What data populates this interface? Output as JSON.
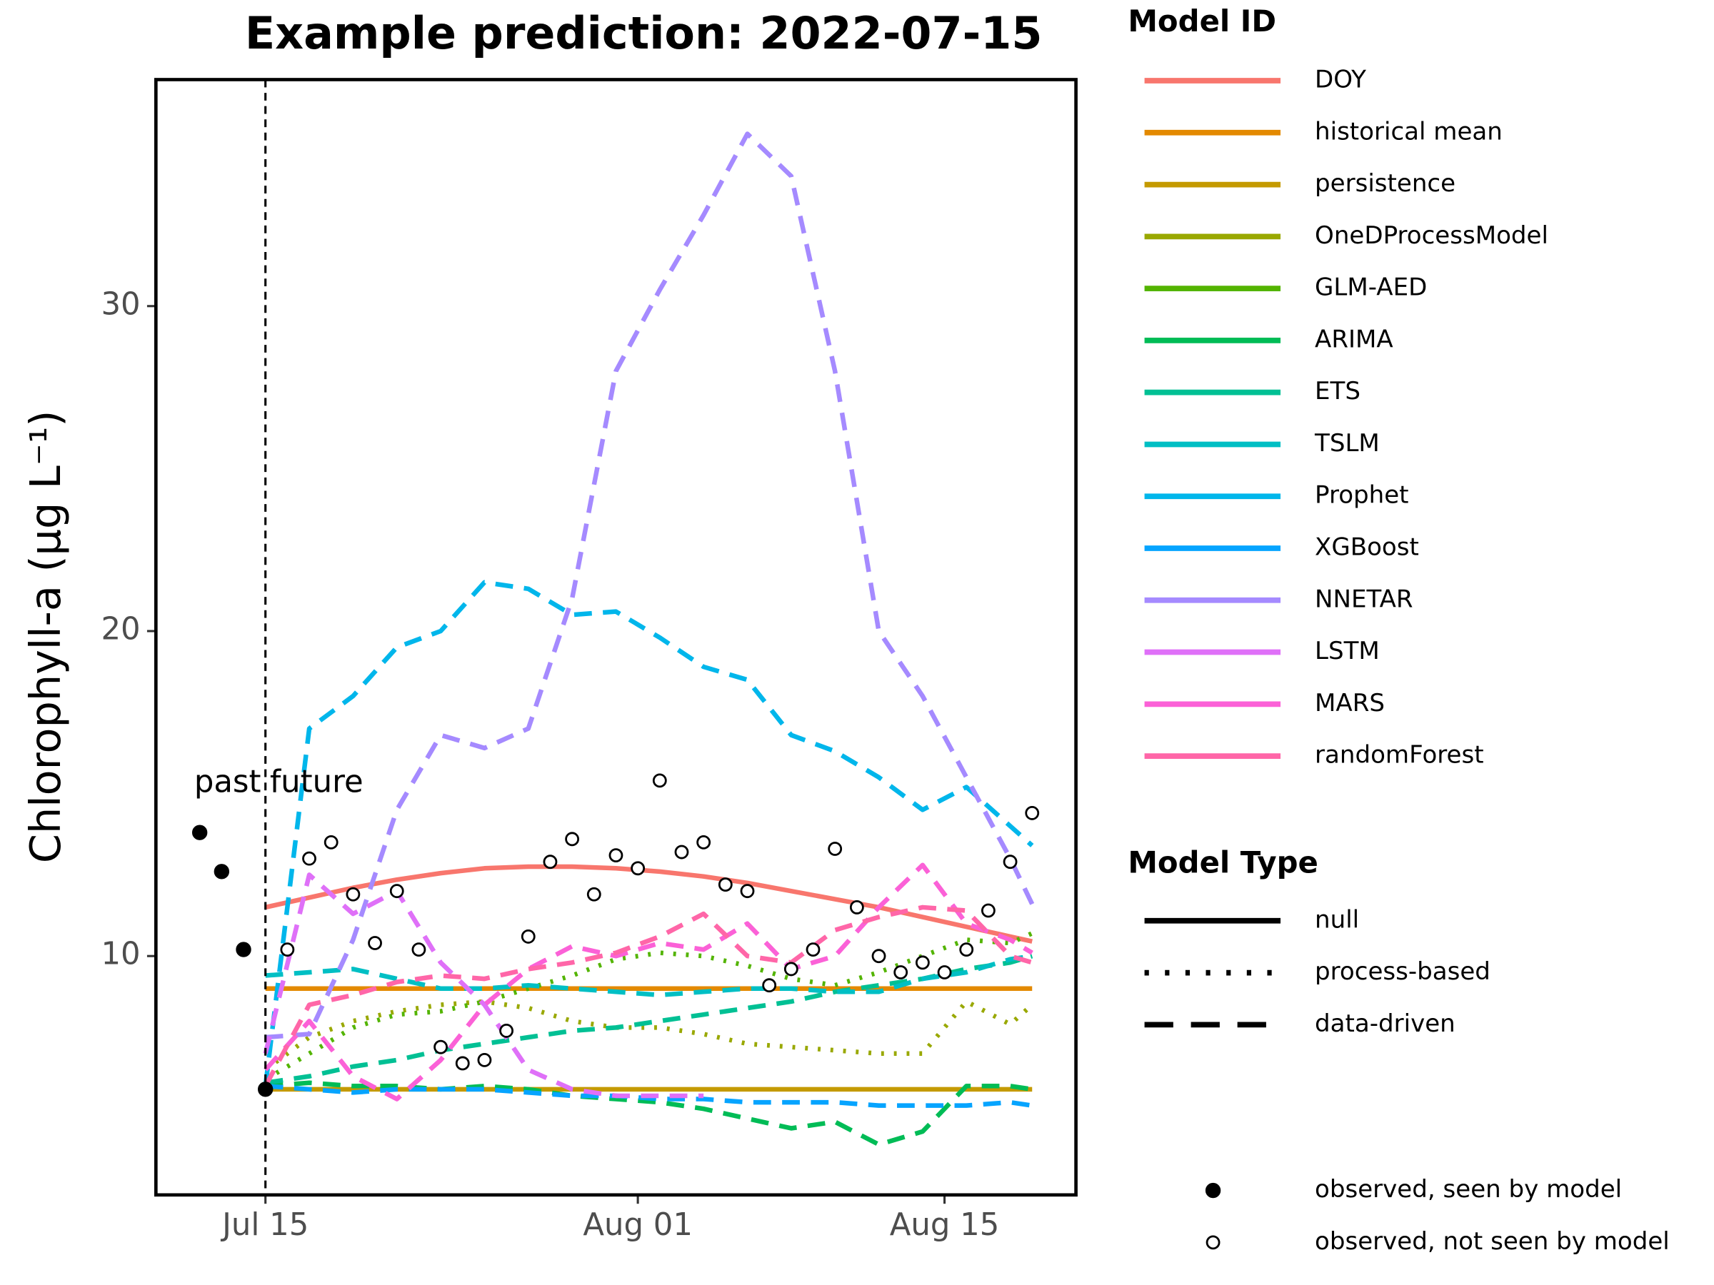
{
  "chart_data": {
    "type": "line",
    "title": "Example prediction: 2022-07-15",
    "ylabel": "Chlorophyll-a (µg L⁻¹)",
    "xlim": [
      "2022-07-10",
      "2022-08-21"
    ],
    "xticks": [
      {
        "value": "2022-07-15",
        "label": "Jul 15"
      },
      {
        "value": "2022-08-01",
        "label": "Aug 01"
      },
      {
        "value": "2022-08-15",
        "label": "Aug 15"
      }
    ],
    "ylim": [
      2.65,
      36.97
    ],
    "yticks": [
      10,
      20,
      30
    ],
    "grid": false,
    "vline": "2022-07-15",
    "annotations": [
      {
        "text": "past",
        "y": 15.3
      },
      {
        "text": "future",
        "y": 15.3
      }
    ],
    "legend_titles": [
      "Model ID",
      "Model Type"
    ],
    "model_types": [
      {
        "name": "null",
        "linestyle": "solid"
      },
      {
        "name": "process-based",
        "linestyle": "dotted"
      },
      {
        "name": "data-driven",
        "linestyle": "dashed"
      }
    ],
    "x": [
      "2022-07-15",
      "2022-07-17",
      "2022-07-19",
      "2022-07-21",
      "2022-07-23",
      "2022-07-25",
      "2022-07-27",
      "2022-07-29",
      "2022-07-31",
      "2022-08-02",
      "2022-08-04",
      "2022-08-06",
      "2022-08-08",
      "2022-08-10",
      "2022-08-12",
      "2022-08-14",
      "2022-08-16",
      "2022-08-18",
      "2022-08-19"
    ],
    "series": [
      {
        "name": "DOY",
        "color": "#F8766D",
        "model_type": "null",
        "values": [
          11.5,
          11.8,
          12.1,
          12.35,
          12.55,
          12.7,
          12.75,
          12.75,
          12.7,
          12.6,
          12.45,
          12.25,
          12.0,
          11.75,
          11.5,
          11.2,
          10.9,
          10.6,
          10.45
        ]
      },
      {
        "name": "historical mean",
        "color": "#E38900",
        "model_type": "null",
        "values": [
          9.0,
          9.0,
          9.0,
          9.0,
          9.0,
          9.0,
          9.0,
          9.0,
          9.0,
          9.0,
          9.0,
          9.0,
          9.0,
          9.0,
          9.0,
          9.0,
          9.0,
          9.0,
          9.0
        ]
      },
      {
        "name": "persistence",
        "color": "#C49A00",
        "model_type": "null",
        "values": [
          5.9,
          5.9,
          5.9,
          5.9,
          5.9,
          5.9,
          5.9,
          5.9,
          5.9,
          5.9,
          5.9,
          5.9,
          5.9,
          5.9,
          5.9,
          5.9,
          5.9,
          5.9,
          5.9
        ]
      },
      {
        "name": "OneDProcessModel",
        "color": "#99A800",
        "model_type": "process-based",
        "values": [
          6.5,
          7.5,
          8.0,
          8.3,
          8.5,
          8.6,
          8.4,
          8.0,
          7.8,
          7.8,
          7.6,
          7.3,
          7.2,
          7.1,
          7.0,
          7.0,
          8.6,
          7.9,
          8.5
        ]
      },
      {
        "name": "GLM-AED",
        "color": "#53B400",
        "model_type": "process-based",
        "values": [
          6.2,
          7.0,
          7.8,
          8.2,
          8.3,
          8.6,
          9.0,
          9.4,
          9.9,
          10.1,
          10.0,
          9.7,
          9.3,
          9.1,
          9.5,
          10.0,
          10.5,
          10.4,
          10.7
        ]
      },
      {
        "name": "ARIMA",
        "color": "#00BC56",
        "model_type": "data-driven",
        "values": [
          6.0,
          6.1,
          6.0,
          6.0,
          5.9,
          6.0,
          5.9,
          5.7,
          5.6,
          5.5,
          5.3,
          5.0,
          4.7,
          4.9,
          4.2,
          4.6,
          6.0,
          6.0,
          5.9
        ]
      },
      {
        "name": "ETS",
        "color": "#00C094",
        "model_type": "data-driven",
        "values": [
          6.1,
          6.3,
          6.6,
          6.8,
          7.1,
          7.3,
          7.5,
          7.7,
          7.8,
          8.0,
          8.2,
          8.4,
          8.6,
          8.9,
          9.1,
          9.3,
          9.6,
          9.8,
          10.0
        ]
      },
      {
        "name": "TSLM",
        "color": "#00BFC4",
        "model_type": "data-driven",
        "values": [
          9.4,
          9.5,
          9.6,
          9.3,
          9.0,
          9.0,
          9.1,
          9.0,
          8.9,
          8.8,
          8.9,
          9.0,
          9.0,
          8.9,
          8.9,
          9.3,
          9.5,
          9.9,
          10.0
        ]
      },
      {
        "name": "Prophet",
        "color": "#00B6EB",
        "model_type": "data-driven",
        "values": [
          6.0,
          17.0,
          18.0,
          19.5,
          20.0,
          21.5,
          21.3,
          20.5,
          20.6,
          19.8,
          18.9,
          18.5,
          16.8,
          16.3,
          15.5,
          14.5,
          15.2,
          14.0,
          13.4
        ]
      },
      {
        "name": "XGBoost",
        "color": "#06A4FF",
        "model_type": "data-driven",
        "values": [
          6.0,
          5.9,
          5.8,
          5.9,
          5.9,
          5.9,
          5.8,
          5.7,
          5.7,
          5.6,
          5.6,
          5.5,
          5.5,
          5.5,
          5.4,
          5.4,
          5.4,
          5.5,
          5.4
        ]
      },
      {
        "name": "NNETAR",
        "color": "#A58AFF",
        "model_type": "data-driven",
        "values": [
          7.5,
          7.6,
          10.5,
          14.5,
          16.8,
          16.4,
          17.0,
          21.0,
          28.0,
          30.5,
          32.8,
          35.3,
          34.0,
          28.0,
          20.0,
          18.0,
          15.5,
          13.0,
          11.6
        ]
      },
      {
        "name": "LSTM",
        "color": "#DF70F8",
        "model_type": "data-driven",
        "values": [
          7.0,
          12.5,
          11.3,
          12.0,
          9.8,
          8.5,
          6.5,
          5.9,
          5.7,
          5.7,
          5.7,
          null,
          null,
          null,
          null,
          null,
          null,
          null,
          null
        ]
      },
      {
        "name": "MARS",
        "color": "#FB61D7",
        "model_type": "data-driven",
        "values": [
          6.5,
          8.0,
          6.3,
          5.6,
          6.8,
          8.5,
          9.6,
          10.3,
          10.0,
          10.4,
          10.2,
          11.0,
          9.6,
          10.0,
          11.5,
          12.8,
          11.0,
          10.5,
          10.1
        ]
      },
      {
        "name": "randomForest",
        "color": "#FF66A8",
        "model_type": "data-driven",
        "values": [
          6.0,
          8.5,
          8.8,
          9.2,
          9.4,
          9.3,
          9.6,
          9.8,
          10.1,
          10.6,
          11.3,
          10.0,
          9.8,
          10.8,
          11.2,
          11.5,
          11.4,
          10.0,
          9.8
        ]
      }
    ],
    "observed": [
      {
        "name": "observed, seen by model",
        "filled": true,
        "x": [
          "2022-07-12",
          "2022-07-13",
          "2022-07-14",
          "2022-07-15"
        ],
        "values": [
          13.8,
          12.6,
          10.2,
          5.9
        ]
      },
      {
        "name": "observed, not seen by model",
        "filled": false,
        "x": [
          "2022-07-16",
          "2022-07-17",
          "2022-07-18",
          "2022-07-19",
          "2022-07-20",
          "2022-07-21",
          "2022-07-22",
          "2022-07-23",
          "2022-07-24",
          "2022-07-25",
          "2022-07-26",
          "2022-07-27",
          "2022-07-28",
          "2022-07-29",
          "2022-07-30",
          "2022-07-31",
          "2022-08-01",
          "2022-08-02",
          "2022-08-03",
          "2022-08-04",
          "2022-08-05",
          "2022-08-06",
          "2022-08-07",
          "2022-08-08",
          "2022-08-09",
          "2022-08-10",
          "2022-08-11",
          "2022-08-12",
          "2022-08-13",
          "2022-08-14",
          "2022-08-15",
          "2022-08-16",
          "2022-08-17",
          "2022-08-18",
          "2022-08-19"
        ],
        "values": [
          10.2,
          13.0,
          13.5,
          11.9,
          10.4,
          12.0,
          10.2,
          7.2,
          6.7,
          6.8,
          7.7,
          10.6,
          12.9,
          13.6,
          11.9,
          13.1,
          12.7,
          15.4,
          13.2,
          13.5,
          12.2,
          12.0,
          9.1,
          9.6,
          10.2,
          13.3,
          11.5,
          10.0,
          9.5,
          9.8,
          9.5,
          10.2,
          11.4,
          12.9,
          14.4
        ]
      }
    ]
  }
}
